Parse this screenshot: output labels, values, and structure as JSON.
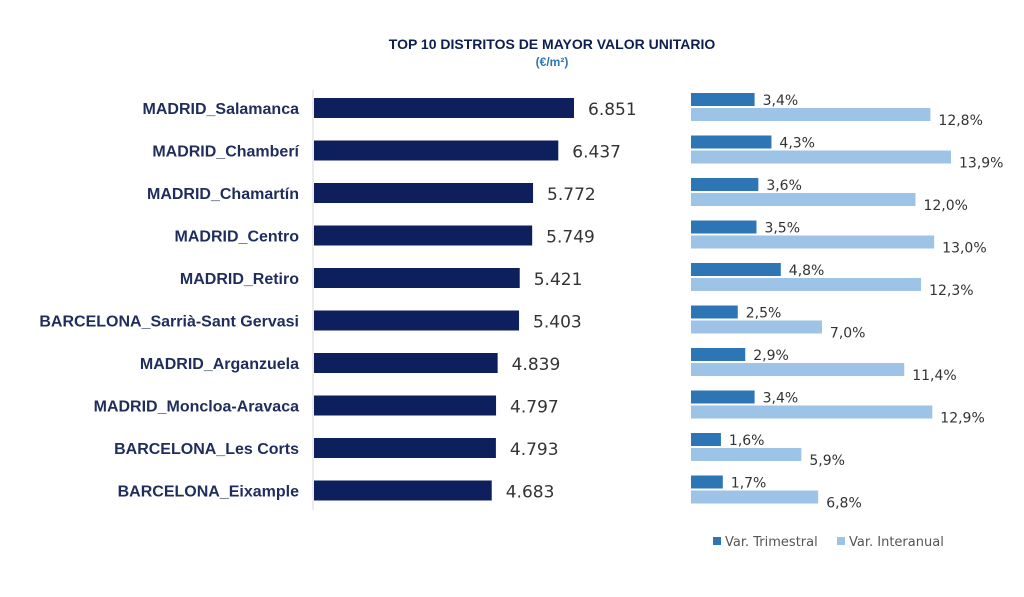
{
  "chart_data": [
    {
      "type": "bar",
      "orientation": "horizontal",
      "title": "TOP 10 DISTRITOS DE MAYOR VALOR UNITARIO",
      "subtitle": "(€/m²)",
      "categories": [
        "MADRID_Salamanca",
        "MADRID_Chamberí",
        "MADRID_Chamartín",
        "MADRID_Centro",
        "MADRID_Retiro",
        "BARCELONA_Sarrià-Sant Gervasi",
        "MADRID_Arganzuela",
        "MADRID_Moncloa-Aravaca",
        "BARCELONA_Les Corts",
        "BARCELONA_Eixample"
      ],
      "values": [
        6851,
        6437,
        5772,
        5749,
        5421,
        5403,
        4839,
        4797,
        4793,
        4683
      ],
      "value_labels": [
        "6.851",
        "6.437",
        "5.772",
        "5.749",
        "5.421",
        "5.403",
        "4.839",
        "4.797",
        "4.793",
        "4.683"
      ],
      "color": "#0d1f5c"
    },
    {
      "type": "bar",
      "orientation": "horizontal",
      "categories": [
        "MADRID_Salamanca",
        "MADRID_Chamberí",
        "MADRID_Chamartín",
        "MADRID_Centro",
        "MADRID_Retiro",
        "BARCELONA_Sarrià-Sant Gervasi",
        "MADRID_Arganzuela",
        "MADRID_Moncloa-Aravaca",
        "BARCELONA_Les Corts",
        "BARCELONA_Eixample"
      ],
      "series": [
        {
          "name": "Var. Trimestral",
          "values": [
            3.4,
            4.3,
            3.6,
            3.5,
            4.8,
            2.5,
            2.9,
            3.4,
            1.6,
            1.7
          ],
          "labels": [
            "3,4%",
            "4,3%",
            "3,6%",
            "3,5%",
            "4,8%",
            "2,5%",
            "2,9%",
            "3,4%",
            "1,6%",
            "1,7%"
          ],
          "color": "#2e75b6"
        },
        {
          "name": "Var. Interanual",
          "values": [
            12.8,
            13.9,
            12.0,
            13.0,
            12.3,
            7.0,
            11.4,
            12.9,
            5.9,
            6.8
          ],
          "labels": [
            "12,8%",
            "13,9%",
            "12,0%",
            "13,0%",
            "12,3%",
            "7,0%",
            "11,4%",
            "12,9%",
            "5,9%",
            "6,8%"
          ],
          "color": "#9dc3e6"
        }
      ],
      "legend": "bottom-right"
    }
  ]
}
